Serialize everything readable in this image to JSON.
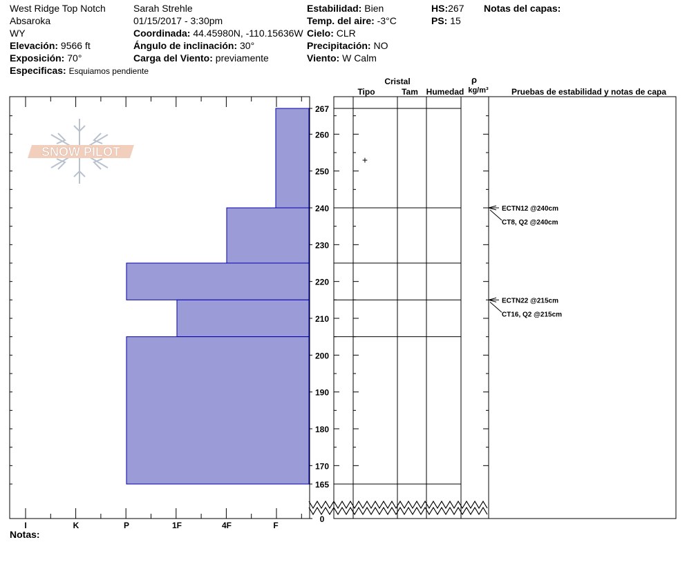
{
  "header": {
    "location_name": "West Ridge Top Notch",
    "range": "Absaroka",
    "state": "WY",
    "elevation_label": "Elevación:",
    "elevation_value": "9566 ft",
    "aspect_label": "Exposición:",
    "aspect_value": "70°",
    "specifics_label": "Especificas:",
    "specifics_value": "Esquiamos pendiente",
    "observer": "Sarah Strehle",
    "datetime": "01/15/2017 - 3:30pm",
    "coord_label": "Coordinada:",
    "coord_value": "44.45980N, -110.15636W",
    "slope_label": "Ángulo de inclinación:",
    "slope_value": "30°",
    "wind_load_label": "Carga del Viento:",
    "wind_load_value": "previamente",
    "stability_label": "Estabilidad:",
    "stability_value": "Bien",
    "air_temp_label": "Temp. del aire:",
    "air_temp_value": "-3°C",
    "sky_label": "Cielo:",
    "sky_value": "CLR",
    "precip_label": "Precipitación:",
    "precip_value": "NO",
    "wind_label": "Viento:",
    "wind_value": "W Calm",
    "hs_label": "HS:",
    "hs_value": "267",
    "ps_label": "PS:",
    "ps_value": "15",
    "layer_notes_label": "Notas del capas:"
  },
  "column_headers": {
    "cristal": "Cristal",
    "tipo": "Tipo",
    "tam": "Tam",
    "humedad": "Humedad",
    "rho": "ρ",
    "density_unit": "kg/m³",
    "tests": "Pruebas de estabilidad y notas de capa"
  },
  "logo_text": "SNOW PILOT",
  "notes_label": "Notas:",
  "colors": {
    "bar_fill": "#9b9bd7",
    "bar_stroke": "#0000aa"
  },
  "chart_data": {
    "type": "bar",
    "orientation": "horizontal",
    "title": "",
    "ylabel": "",
    "y_ticks": [
      267,
      260,
      250,
      240,
      230,
      220,
      210,
      200,
      190,
      180,
      170,
      165,
      0
    ],
    "hardness_scale": [
      "I",
      "K",
      "P",
      "1F",
      "4F",
      "F"
    ],
    "hardness_layers": [
      {
        "top": 267,
        "bottom": 240,
        "hardness": "F"
      },
      {
        "top": 240,
        "bottom": 225,
        "hardness": "4F"
      },
      {
        "top": 225,
        "bottom": 215,
        "hardness": "P"
      },
      {
        "top": 215,
        "bottom": 205,
        "hardness": "1F"
      },
      {
        "top": 205,
        "bottom": 165,
        "hardness": "P"
      }
    ],
    "layer_boundaries": [
      267,
      240,
      225,
      215,
      205,
      165
    ],
    "crystal_markers": [
      {
        "height": 253,
        "symbol": "+"
      }
    ],
    "stability_tests": [
      {
        "height": 240,
        "lines": [
          "ECTN12 @240cm",
          "CT8, Q2 @240cm"
        ]
      },
      {
        "height": 215,
        "lines": [
          "ECTN22 @215cm",
          "CT16, Q2 @215cm"
        ]
      }
    ]
  }
}
